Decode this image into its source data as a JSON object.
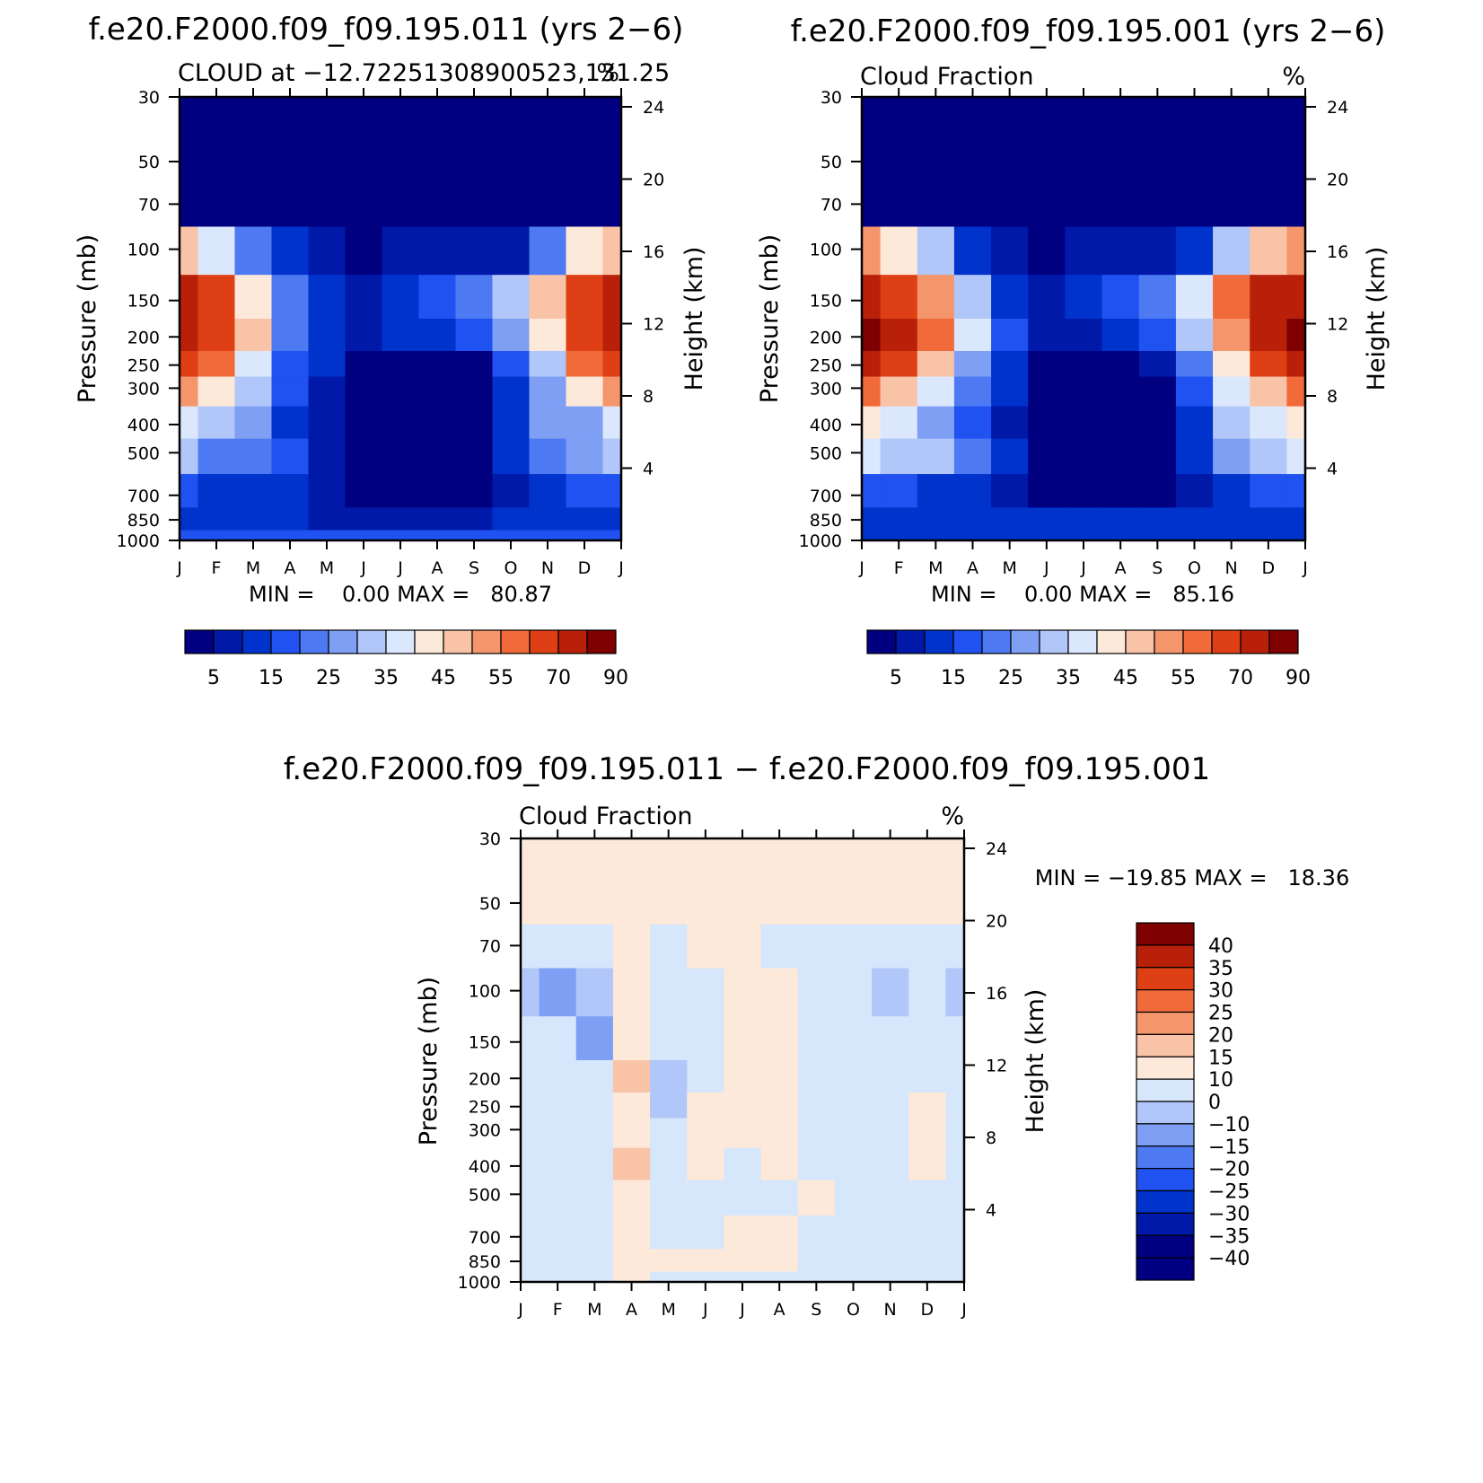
{
  "colors": {
    "abs_levels": [
      "#000080",
      "#0019a8",
      "#0033cc",
      "#1f52f0",
      "#4d79f2",
      "#7f9ff5",
      "#b1c6f9",
      "#dbe7fc",
      "#fde9d9",
      "#f9c3a8",
      "#f5956b",
      "#f06a3a",
      "#de3f14",
      "#b8200a",
      "#7f0000"
    ],
    "diff_levels": [
      "#000080",
      "#0019a8",
      "#0033cc",
      "#1f52f0",
      "#4d79f2",
      "#7f9ff5",
      "#b1c6f9",
      "#d6e6fb",
      "#fde9d9",
      "#f9c3a8",
      "#f5956b",
      "#f06a3a",
      "#de3f14",
      "#b8200a",
      "#7f0000"
    ]
  },
  "chart_data": [
    {
      "type": "heatmap",
      "title": "f.e20.F2000.f09_f09.195.011 (yrs 2−6)",
      "subtitle_left": "CLOUD at −12.72251308900523,131.25",
      "subtitle_right": "%",
      "xlabel": "",
      "ylabel": "Pressure (mb)",
      "y2label": "Height (km)",
      "x_ticks": [
        "J",
        "F",
        "M",
        "A",
        "M",
        "J",
        "J",
        "A",
        "S",
        "O",
        "N",
        "D",
        "J"
      ],
      "y_ticks": [
        30,
        50,
        70,
        100,
        150,
        200,
        250,
        300,
        400,
        500,
        700,
        850,
        1000
      ],
      "y2_ticks": [
        24,
        20,
        16,
        12,
        8,
        4
      ],
      "log_y": true,
      "stats": "MIN =    0.00 MAX =   80.87",
      "colorbar_labels": [
        "5",
        "15",
        "25",
        "35",
        "45",
        "55",
        "70",
        "90"
      ],
      "levels": [
        30,
        50,
        70,
        100,
        150,
        200,
        250,
        300,
        400,
        500,
        700,
        850,
        1000
      ],
      "months": [
        "Jan",
        "Feb",
        "Mar",
        "Apr",
        "May",
        "Jun",
        "Jul",
        "Aug",
        "Sep",
        "Oct",
        "Nov",
        "Dec",
        "Jan"
      ],
      "values": [
        [
          0,
          0,
          0,
          0,
          0,
          0,
          0,
          0,
          0,
          0,
          0,
          0,
          0
        ],
        [
          0,
          0,
          0,
          0,
          0,
          0,
          0,
          0,
          0,
          0,
          0,
          0,
          0
        ],
        [
          3,
          3,
          2,
          2,
          1,
          1,
          1,
          1,
          1,
          1,
          2,
          3,
          3
        ],
        [
          45,
          35,
          20,
          10,
          6,
          3,
          5,
          6,
          6,
          8,
          20,
          40,
          45
        ],
        [
          70,
          60,
          40,
          20,
          12,
          8,
          12,
          18,
          22,
          30,
          45,
          65,
          70
        ],
        [
          75,
          65,
          45,
          20,
          12,
          9,
          10,
          14,
          18,
          25,
          40,
          65,
          75
        ],
        [
          65,
          55,
          38,
          18,
          10,
          3,
          2,
          2,
          3,
          18,
          30,
          55,
          65
        ],
        [
          50,
          42,
          32,
          16,
          8,
          2,
          1,
          1,
          2,
          14,
          25,
          42,
          50
        ],
        [
          35,
          30,
          25,
          14,
          7,
          1,
          1,
          1,
          1,
          12,
          25,
          28,
          35
        ],
        [
          30,
          22,
          20,
          16,
          9,
          1,
          1,
          1,
          1,
          10,
          22,
          28,
          30
        ],
        [
          15,
          13,
          12,
          10,
          6,
          2,
          2,
          2,
          3,
          7,
          12,
          15,
          15
        ],
        [
          13,
          12,
          12,
          11,
          9,
          9,
          9,
          9,
          9,
          11,
          13,
          13,
          13
        ],
        [
          15,
          15,
          15,
          15,
          15,
          15,
          15,
          15,
          15,
          15,
          15,
          15,
          15
        ]
      ]
    },
    {
      "type": "heatmap",
      "title": "f.e20.F2000.f09_f09.195.001 (yrs 2−6)",
      "subtitle_left": "Cloud Fraction",
      "subtitle_right": "%",
      "xlabel": "",
      "ylabel": "Pressure (mb)",
      "y2label": "Height (km)",
      "x_ticks": [
        "J",
        "F",
        "M",
        "A",
        "M",
        "J",
        "J",
        "A",
        "S",
        "O",
        "N",
        "D",
        "J"
      ],
      "y_ticks": [
        30,
        50,
        70,
        100,
        150,
        200,
        250,
        300,
        400,
        500,
        700,
        850,
        1000
      ],
      "y2_ticks": [
        24,
        20,
        16,
        12,
        8,
        4
      ],
      "log_y": true,
      "stats": "MIN =    0.00 MAX =   85.16",
      "colorbar_labels": [
        "5",
        "15",
        "25",
        "35",
        "45",
        "55",
        "70",
        "90"
      ],
      "levels": [
        30,
        50,
        70,
        100,
        150,
        200,
        250,
        300,
        400,
        500,
        700,
        850,
        1000
      ],
      "months": [
        "Jan",
        "Feb",
        "Mar",
        "Apr",
        "May",
        "Jun",
        "Jul",
        "Aug",
        "Sep",
        "Oct",
        "Nov",
        "Dec",
        "Jan"
      ],
      "values": [
        [
          0,
          0,
          0,
          0,
          0,
          0,
          0,
          0,
          0,
          0,
          0,
          0,
          0
        ],
        [
          0,
          0,
          0,
          0,
          0,
          0,
          0,
          0,
          0,
          0,
          0,
          0,
          0
        ],
        [
          3,
          3,
          2,
          2,
          1,
          1,
          1,
          1,
          1,
          1,
          2,
          3,
          3
        ],
        [
          50,
          42,
          30,
          12,
          6,
          3,
          5,
          6,
          6,
          10,
          30,
          45,
          50
        ],
        [
          78,
          68,
          50,
          30,
          14,
          8,
          12,
          18,
          22,
          35,
          55,
          70,
          78
        ],
        [
          82,
          70,
          55,
          35,
          18,
          9,
          8,
          10,
          18,
          30,
          50,
          70,
          82
        ],
        [
          70,
          60,
          45,
          25,
          12,
          3,
          4,
          2,
          5,
          22,
          40,
          60,
          70
        ],
        [
          55,
          48,
          38,
          22,
          10,
          2,
          1,
          1,
          3,
          18,
          35,
          48,
          55
        ],
        [
          42,
          35,
          28,
          18,
          9,
          2,
          1,
          1,
          2,
          14,
          32,
          36,
          42
        ],
        [
          35,
          30,
          30,
          22,
          12,
          2,
          1,
          1,
          2,
          12,
          28,
          32,
          35
        ],
        [
          18,
          15,
          14,
          12,
          8,
          3,
          2,
          2,
          3,
          8,
          14,
          16,
          18
        ],
        [
          14,
          13,
          12,
          12,
          11,
          10,
          10,
          10,
          10,
          11,
          13,
          14,
          14
        ],
        [
          14,
          14,
          14,
          14,
          14,
          14,
          14,
          14,
          14,
          14,
          14,
          14,
          14
        ]
      ]
    },
    {
      "type": "heatmap",
      "title": "f.e20.F2000.f09_f09.195.011 − f.e20.F2000.f09_f09.195.001",
      "subtitle_left": "Cloud Fraction",
      "subtitle_right": "%",
      "xlabel": "",
      "ylabel": "Pressure (mb)",
      "y2label": "Height (km)",
      "x_ticks": [
        "J",
        "F",
        "M",
        "A",
        "M",
        "J",
        "J",
        "A",
        "S",
        "O",
        "N",
        "D",
        "J"
      ],
      "y_ticks": [
        30,
        50,
        70,
        100,
        150,
        200,
        250,
        300,
        400,
        500,
        700,
        850,
        1000
      ],
      "y2_ticks": [
        24,
        20,
        16,
        12,
        8,
        4
      ],
      "log_y": true,
      "stats": "MIN = −19.85 MAX =   18.36",
      "colorbar_labels": [
        "40",
        "35",
        "30",
        "25",
        "20",
        "15",
        "10",
        "0",
        "−10",
        "−15",
        "−20",
        "−25",
        "−30",
        "−35",
        "−40"
      ],
      "levels": [
        30,
        50,
        70,
        100,
        150,
        200,
        250,
        300,
        400,
        500,
        700,
        850,
        1000
      ],
      "months": [
        "Jan",
        "Feb",
        "Mar",
        "Apr",
        "May",
        "Jun",
        "Jul",
        "Aug",
        "Sep",
        "Oct",
        "Nov",
        "Dec",
        "Jan"
      ],
      "values": [
        [
          1,
          1,
          1,
          1,
          1,
          1,
          1,
          1,
          1,
          1,
          1,
          1,
          1
        ],
        [
          1,
          1,
          1,
          1,
          1,
          1,
          1,
          1,
          1,
          1,
          1,
          1,
          1
        ],
        [
          -1,
          -1,
          -1,
          1,
          -1,
          1,
          1,
          -1,
          -1,
          -1,
          -1,
          -1,
          -1
        ],
        [
          -14,
          -16,
          -12,
          3,
          -2,
          -1,
          2,
          5,
          -1,
          -1,
          -12,
          -2,
          -11
        ],
        [
          -8,
          -10,
          -18,
          2,
          -4,
          -2,
          4,
          4,
          -1,
          -1,
          -1,
          -2,
          -5
        ],
        [
          -3,
          -5,
          -8,
          11,
          -12,
          -3,
          2,
          2,
          -1,
          -1,
          -1,
          -2,
          -3
        ],
        [
          -2,
          -2,
          -4,
          5,
          -11,
          2,
          2,
          2,
          -2,
          -1,
          -1,
          5,
          -2
        ],
        [
          -1,
          -1,
          -2,
          1,
          -2,
          2,
          3,
          2,
          -1,
          -1,
          -1,
          5,
          -1
        ],
        [
          -1,
          -1,
          -1,
          11,
          -2,
          3,
          -1,
          3,
          -1,
          -1,
          -1,
          1,
          -1
        ],
        [
          -3,
          -1,
          -1,
          2,
          -2,
          -2,
          -1,
          -1,
          2,
          -1,
          -1,
          -1,
          -3
        ],
        [
          -1,
          -1,
          -1,
          1,
          -1,
          -1,
          2,
          2,
          -1,
          -1,
          -1,
          -1,
          -1
        ],
        [
          -1,
          -1,
          -1,
          2,
          1,
          2,
          2,
          3,
          -1,
          -1,
          -1,
          -1,
          -1
        ],
        [
          -1,
          -1,
          -1,
          2,
          -1,
          -1,
          -1,
          -1,
          -1,
          -1,
          -1,
          -1,
          -1
        ]
      ]
    }
  ]
}
